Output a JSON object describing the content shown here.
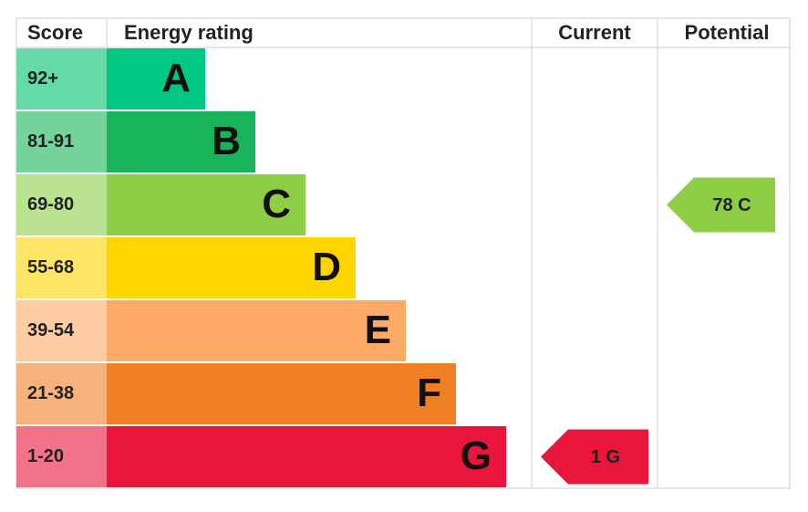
{
  "header": {
    "score": "Score",
    "energy_rating": "Energy rating",
    "current": "Current",
    "potential": "Potential"
  },
  "bands": [
    {
      "score": "92+",
      "rating": "A"
    },
    {
      "score": "81-91",
      "rating": "B"
    },
    {
      "score": "69-80",
      "rating": "C",
      "potential": "78 C"
    },
    {
      "score": "55-68",
      "rating": "D"
    },
    {
      "score": "39-54",
      "rating": "E"
    },
    {
      "score": "21-38",
      "rating": "F"
    },
    {
      "score": "1-20",
      "rating": "G",
      "current": "1 G"
    }
  ]
}
